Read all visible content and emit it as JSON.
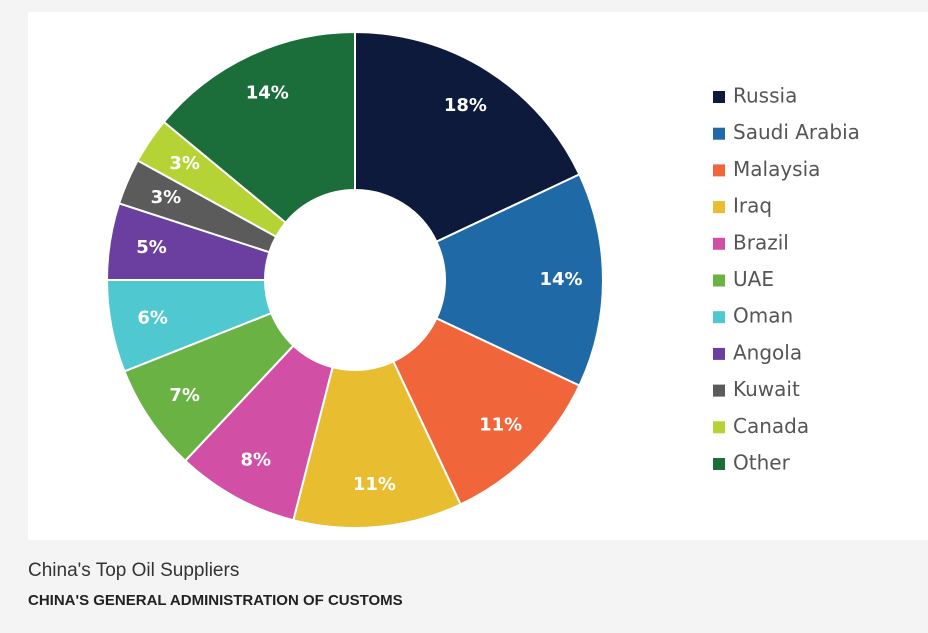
{
  "chart_data": {
    "type": "donut",
    "categories": [
      "Russia",
      "Saudi Arabia",
      "Malaysia",
      "Iraq",
      "Brazil",
      "UAE",
      "Oman",
      "Angola",
      "Kuwait",
      "Canada",
      "Other"
    ],
    "values": [
      18,
      14,
      11,
      11,
      8,
      7,
      6,
      5,
      3,
      3,
      14
    ],
    "value_labels": [
      "18%",
      "14%",
      "11%",
      "11%",
      "8%",
      "7%",
      "6%",
      "5%",
      "3%",
      "3%",
      "14%"
    ],
    "colors": [
      "#0e1a3b",
      "#1f6aa6",
      "#f1653a",
      "#e8bd2f",
      "#d24fa6",
      "#6bb245",
      "#4fc8cf",
      "#6a3f9f",
      "#5b5b5b",
      "#b6d335",
      "#1b6e3a"
    ],
    "legend": "right"
  },
  "caption": {
    "title": "China's Top Oil Suppliers",
    "source": "CHINA'S GENERAL ADMINISTRATION OF CUSTOMS"
  }
}
